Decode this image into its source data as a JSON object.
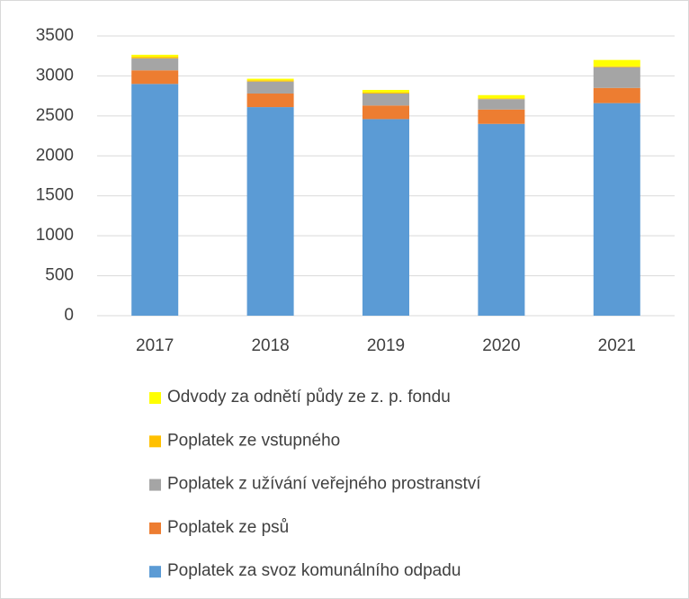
{
  "chart_data": {
    "type": "stacked_bar",
    "categories": [
      "2017",
      "2018",
      "2019",
      "2020",
      "2021"
    ],
    "series": [
      {
        "name": "Poplatek za svoz komunálního odpadu",
        "color": "#5b9bd5",
        "values": [
          2900,
          2610,
          2460,
          2400,
          2660
        ]
      },
      {
        "name": "Poplatek ze psů",
        "color": "#ed7d31",
        "values": [
          170,
          170,
          170,
          180,
          190
        ]
      },
      {
        "name": "Poplatek z užívání veřejného prostranství",
        "color": "#a5a5a5",
        "values": [
          150,
          150,
          150,
          130,
          260
        ]
      },
      {
        "name": "Poplatek ze vstupného",
        "color": "#ffc000",
        "values": [
          20,
          15,
          15,
          10,
          10
        ]
      },
      {
        "name": "Odvody za odnětí půdy ze z. p. fondu",
        "color": "#ffff00",
        "values": [
          25,
          20,
          30,
          40,
          80
        ]
      }
    ],
    "ylim": [
      0,
      3500
    ],
    "yticks": [
      0,
      500,
      1000,
      1500,
      2000,
      2500,
      3000,
      3500
    ],
    "grid": true
  }
}
